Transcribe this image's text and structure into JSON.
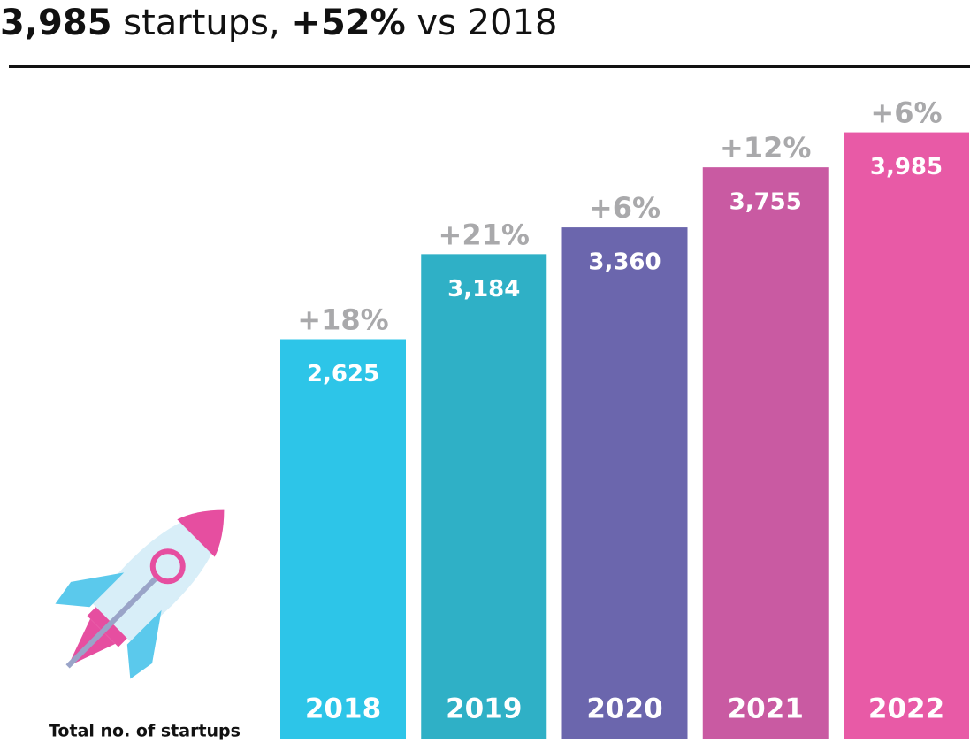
{
  "chart_data": {
    "type": "bar",
    "title": [
      "3,985",
      " startups, ",
      "+52%",
      " vs 2018"
    ],
    "categories": [
      "2018",
      "2019",
      "2020",
      "2021",
      "2022"
    ],
    "values": [
      2625,
      3184,
      3360,
      3755,
      3985
    ],
    "value_labels": [
      "2,625",
      "3,184",
      "3,360",
      "3,755",
      "3,985"
    ],
    "growth_labels": [
      "+18%",
      "+21%",
      "+6%",
      "+12%",
      "+6%"
    ],
    "colors": [
      "#2dc5e8",
      "#2fb0c6",
      "#6b66ad",
      "#c95aa2",
      "#e85aa6"
    ],
    "ylim": [
      0,
      4000
    ],
    "footnote": "Total no. of startups"
  }
}
